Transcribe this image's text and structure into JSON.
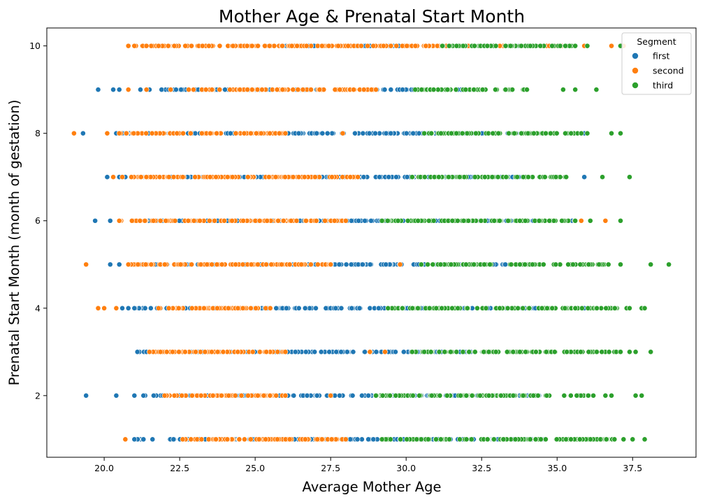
{
  "chart_data": {
    "type": "scatter",
    "title": "Mother Age & Prenatal Start Month",
    "xlabel": "Average Mother Age",
    "ylabel": "Prenatal Start Month (month of gestation)",
    "xlim": [
      18.1,
      39.6
    ],
    "ylim": [
      0.59,
      10.41
    ],
    "xticks": [
      {
        "value": 20.0,
        "label": "20.0"
      },
      {
        "value": 22.5,
        "label": "22.5"
      },
      {
        "value": 25.0,
        "label": "25.0"
      },
      {
        "value": 27.5,
        "label": "27.5"
      },
      {
        "value": 30.0,
        "label": "30.0"
      },
      {
        "value": 32.5,
        "label": "32.5"
      },
      {
        "value": 35.0,
        "label": "35.0"
      },
      {
        "value": 37.5,
        "label": "37.5"
      }
    ],
    "yticks": [
      {
        "value": 2,
        "label": "2"
      },
      {
        "value": 4,
        "label": "4"
      },
      {
        "value": 6,
        "label": "6"
      },
      {
        "value": 8,
        "label": "8"
      },
      {
        "value": 10,
        "label": "10"
      }
    ],
    "grid": false,
    "legend": {
      "title": "Segment",
      "position": "top-right"
    },
    "series": [
      {
        "name": "first",
        "color": "#1f77b4",
        "ranges": [
          {
            "y": 1,
            "x_min": 21.0,
            "x_max": 34.6,
            "extra_x": [
              21.3,
              21.6,
              36.3
            ]
          },
          {
            "y": 2,
            "x_min": 21.3,
            "x_max": 34.4,
            "extra_x": [
              19.4,
              20.4,
              21.0
            ]
          },
          {
            "y": 3,
            "x_min": 21.1,
            "x_max": 33.0,
            "extra_x": [
              21.4,
              35.7
            ]
          },
          {
            "y": 4,
            "x_min": 21.0,
            "x_max": 34.7,
            "extra_x": [
              20.6,
              20.8,
              35.9
            ]
          },
          {
            "y": 5,
            "x_min": 21.0,
            "x_max": 33.8,
            "extra_x": [
              20.2,
              20.5,
              20.8
            ]
          },
          {
            "y": 6,
            "x_min": 21.0,
            "x_max": 34.8,
            "extra_x": [
              19.7,
              20.2,
              35.5
            ]
          },
          {
            "y": 7,
            "x_min": 20.9,
            "x_max": 34.4,
            "extra_x": [
              20.1,
              20.5,
              20.7,
              35.9
            ]
          },
          {
            "y": 8,
            "x_min": 20.6,
            "x_max": 35.0,
            "extra_x": [
              19.3,
              20.4,
              35.9
            ]
          },
          {
            "y": 9,
            "x_min": 21.9,
            "x_max": 32.5,
            "extra_x": [
              19.8,
              20.3,
              20.5,
              21.2,
              21.5,
              34.0
            ]
          },
          {
            "y": 10,
            "x_min": 25.9,
            "x_max": 33.8,
            "extra_x": [
              33.9,
              34.2
            ]
          }
        ]
      },
      {
        "name": "second",
        "color": "#ff7f0e",
        "ranges": [
          {
            "y": 1,
            "x_min": 22.6,
            "x_max": 28.0,
            "extra_x": [
              20.7,
              36.6
            ]
          },
          {
            "y": 2,
            "x_min": 22.0,
            "x_max": 26.0,
            "extra_x": [
              23.6,
              27.5
            ]
          },
          {
            "y": 3,
            "x_min": 21.5,
            "x_max": 26.0,
            "extra_x": [
              28.8,
              29.3
            ]
          },
          {
            "y": 4,
            "x_min": 21.8,
            "x_max": 25.5,
            "extra_x": [
              19.8,
              20.0,
              20.4,
              29.4
            ]
          },
          {
            "y": 5,
            "x_min": 20.8,
            "x_max": 27.5,
            "extra_x": [
              19.4,
              29.8,
              31.6,
              33.5
            ]
          },
          {
            "y": 6,
            "x_min": 20.5,
            "x_max": 28.0,
            "extra_x": [
              30.5,
              32.5,
              35.8,
              36.6
            ]
          },
          {
            "y": 7,
            "x_min": 20.9,
            "x_max": 28.4,
            "extra_x": [
              20.3,
              20.6,
              30.4,
              31.9
            ]
          },
          {
            "y": 8,
            "x_min": 20.5,
            "x_max": 26.0,
            "extra_x": [
              19.0,
              20.1,
              27.9,
              30.8,
              33.1
            ]
          },
          {
            "y": 9,
            "x_min": 22.8,
            "x_max": 29.0,
            "extra_x": [
              20.8,
              21.4,
              22.2
            ]
          },
          {
            "y": 10,
            "x_min": 20.8,
            "x_max": 35.5,
            "extra_x": [
              21.0,
              21.4,
              21.8,
              35.9,
              36.8,
              37.2
            ]
          }
        ]
      },
      {
        "name": "third",
        "color": "#2ca02c",
        "ranges": [
          {
            "y": 1,
            "x_min": 29.2,
            "x_max": 36.9,
            "extra_x": [
              37.2,
              37.5,
              37.9
            ]
          },
          {
            "y": 2,
            "x_min": 29.0,
            "x_max": 36.2,
            "extra_x": [
              36.6,
              36.8,
              37.6,
              37.8
            ]
          },
          {
            "y": 3,
            "x_min": 30.2,
            "x_max": 37.1,
            "extra_x": [
              37.4,
              37.6,
              38.1
            ]
          },
          {
            "y": 4,
            "x_min": 29.4,
            "x_max": 37.4,
            "extra_x": [
              37.8,
              37.9
            ]
          },
          {
            "y": 5,
            "x_min": 30.5,
            "x_max": 36.7,
            "extra_x": [
              37.1,
              38.1,
              38.7
            ]
          },
          {
            "y": 6,
            "x_min": 29.2,
            "x_max": 35.6,
            "extra_x": [
              36.1,
              37.1
            ]
          },
          {
            "y": 7,
            "x_min": 30.2,
            "x_max": 35.3,
            "extra_x": [
              36.5,
              37.4
            ]
          },
          {
            "y": 8,
            "x_min": 30.6,
            "x_max": 35.8,
            "extra_x": [
              36.0,
              36.8,
              37.1
            ]
          },
          {
            "y": 9,
            "x_min": 30.3,
            "x_max": 34.0,
            "extra_x": [
              35.2,
              35.6,
              36.3
            ]
          },
          {
            "y": 10,
            "x_min": 31.2,
            "x_max": 35.6,
            "extra_x": [
              36.0,
              37.1
            ]
          }
        ]
      }
    ]
  }
}
